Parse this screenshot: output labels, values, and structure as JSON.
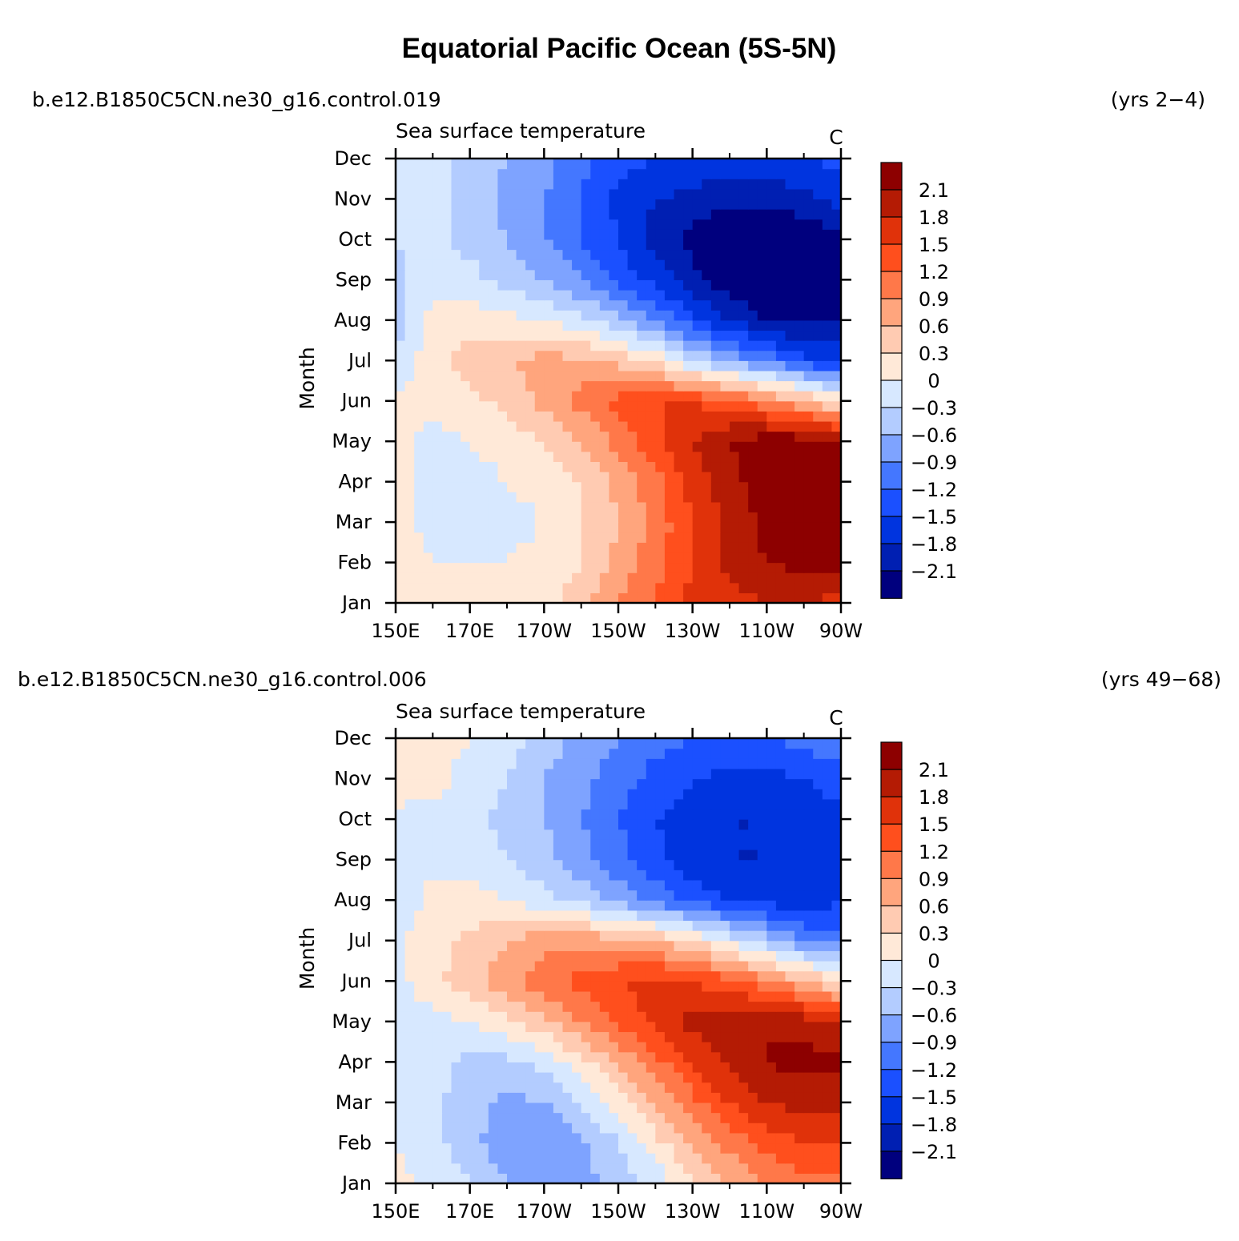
{
  "title": "Equatorial Pacific Ocean (5S-5N)",
  "colors": {
    "levels": [
      "#00007e",
      "#001fb2",
      "#0034df",
      "#1b50ff",
      "#4477ff",
      "#7ea3ff",
      "#b3ccff",
      "#d7e8ff",
      "#ffe9d8",
      "#ffcbb2",
      "#ffa57d",
      "#ff7849",
      "#ff4f1d",
      "#e0320a",
      "#b41b04",
      "#8d0000"
    ]
  },
  "chart_data": [
    {
      "type": "heatmap",
      "case_label": "b.e12.B1850C5CN.ne30_g16.control.019",
      "years_label": "(yrs 2−4)",
      "subtitle": "Sea surface temperature",
      "units": "C",
      "ylabel": "Month",
      "x_ticks": [
        "150E",
        "170E",
        "170W",
        "150W",
        "130W",
        "110W",
        "90W"
      ],
      "x_range_deg_east": [
        150,
        270
      ],
      "y_ticks": [
        "Jan",
        "Feb",
        "Mar",
        "Apr",
        "May",
        "Jun",
        "Jul",
        "Aug",
        "Sep",
        "Oct",
        "Nov",
        "Dec"
      ],
      "colorbar_labels": [
        "2.1",
        "1.8",
        "1.5",
        "1.2",
        "0.9",
        "0.6",
        "0.3",
        "0",
        "−0.3",
        "−0.6",
        "−0.9",
        "−1.2",
        "−1.5",
        "−1.8",
        "−2.1"
      ],
      "contour_levels": [
        -2.1,
        -1.8,
        -1.5,
        -1.2,
        -0.9,
        -0.6,
        -0.3,
        0,
        0.3,
        0.6,
        0.9,
        1.2,
        1.5,
        1.8,
        2.1
      ],
      "field": {
        "lon": [
          150,
          160,
          170,
          180,
          190,
          200,
          210,
          220,
          230,
          240,
          250,
          260,
          270
        ],
        "months": [
          "Jan",
          "Feb",
          "Mar",
          "Apr",
          "May",
          "Jun",
          "Jul",
          "Aug",
          "Sep",
          "Oct",
          "Nov",
          "Dec"
        ],
        "values": [
          [
            0.2,
            0.1,
            0.1,
            0.1,
            0.2,
            0.5,
            0.9,
            1.2,
            1.6,
            1.7,
            1.8,
            1.8,
            1.7
          ],
          [
            0.2,
            0.0,
            0.0,
            0.0,
            0.1,
            0.3,
            0.7,
            1.1,
            1.5,
            1.9,
            2.1,
            2.2,
            2.2
          ],
          [
            0.1,
            -0.1,
            -0.1,
            -0.1,
            0.0,
            0.3,
            0.6,
            1.0,
            1.5,
            1.9,
            2.2,
            2.4,
            2.4
          ],
          [
            0.1,
            -0.1,
            -0.1,
            0.0,
            0.1,
            0.3,
            0.7,
            1.1,
            1.6,
            2.0,
            2.3,
            2.4,
            2.4
          ],
          [
            0.1,
            -0.1,
            0.0,
            0.1,
            0.3,
            0.6,
            1.0,
            1.4,
            1.8,
            2.1,
            2.3,
            2.3,
            2.2
          ],
          [
            0.1,
            0.1,
            0.2,
            0.4,
            0.7,
            1.0,
            1.3,
            1.5,
            1.5,
            1.3,
            1.0,
            0.6,
            0.2
          ],
          [
            -0.3,
            0.2,
            0.4,
            0.6,
            0.7,
            0.7,
            0.5,
            0.2,
            -0.3,
            -0.7,
            -1.0,
            -1.4,
            -1.6
          ],
          [
            -0.4,
            0.1,
            0.2,
            0.1,
            0.0,
            -0.2,
            -0.5,
            -0.9,
            -1.4,
            -1.8,
            -2.1,
            -2.2,
            -2.1
          ],
          [
            -0.4,
            -0.1,
            -0.2,
            -0.4,
            -0.6,
            -0.9,
            -1.3,
            -1.6,
            -2.0,
            -2.3,
            -2.5,
            -2.5,
            -2.3
          ],
          [
            -0.3,
            -0.2,
            -0.4,
            -0.6,
            -0.9,
            -1.2,
            -1.5,
            -1.9,
            -2.2,
            -2.5,
            -2.5,
            -2.4,
            -2.2
          ],
          [
            -0.2,
            -0.2,
            -0.4,
            -0.7,
            -0.9,
            -1.2,
            -1.6,
            -1.8,
            -1.9,
            -2.0,
            -2.0,
            -1.9,
            -1.7
          ],
          [
            -0.1,
            -0.2,
            -0.4,
            -0.6,
            -0.8,
            -1.1,
            -1.4,
            -1.5,
            -1.6,
            -1.6,
            -1.6,
            -1.5,
            -1.4
          ]
        ]
      }
    },
    {
      "type": "heatmap",
      "case_label": "b.e12.B1850C5CN.ne30_g16.control.006",
      "years_label": "(yrs 49−68)",
      "subtitle": "Sea surface temperature",
      "units": "C",
      "ylabel": "Month",
      "x_ticks": [
        "150E",
        "170E",
        "170W",
        "150W",
        "130W",
        "110W",
        "90W"
      ],
      "x_range_deg_east": [
        150,
        270
      ],
      "y_ticks": [
        "Jan",
        "Feb",
        "Mar",
        "Apr",
        "May",
        "Jun",
        "Jul",
        "Aug",
        "Sep",
        "Oct",
        "Nov",
        "Dec"
      ],
      "colorbar_labels": [
        "2.1",
        "1.8",
        "1.5",
        "1.2",
        "0.9",
        "0.6",
        "0.3",
        "0",
        "−0.3",
        "−0.6",
        "−0.9",
        "−1.2",
        "−1.5",
        "−1.8",
        "−2.1"
      ],
      "contour_levels": [
        -2.1,
        -1.8,
        -1.5,
        -1.2,
        -0.9,
        -0.6,
        -0.3,
        0,
        0.3,
        0.6,
        0.9,
        1.2,
        1.5,
        1.8,
        2.1
      ],
      "field": {
        "lon": [
          150,
          160,
          170,
          180,
          190,
          200,
          210,
          220,
          230,
          240,
          250,
          260,
          270
        ],
        "months": [
          "Jan",
          "Feb",
          "Mar",
          "Apr",
          "May",
          "Jun",
          "Jul",
          "Aug",
          "Sep",
          "Oct",
          "Nov",
          "Dec"
        ],
        "values": [
          [
            0.1,
            -0.1,
            -0.3,
            -0.6,
            -0.7,
            -0.7,
            -0.5,
            -0.2,
            0.2,
            0.6,
            0.9,
            1.1,
            1.1
          ],
          [
            0.0,
            -0.2,
            -0.5,
            -0.8,
            -0.9,
            -0.7,
            -0.3,
            0.2,
            0.6,
            1.0,
            1.3,
            1.5,
            1.5
          ],
          [
            -0.1,
            -0.2,
            -0.5,
            -0.7,
            -0.6,
            -0.3,
            0.1,
            0.6,
            1.1,
            1.5,
            1.8,
            1.9,
            1.9
          ],
          [
            -0.1,
            -0.2,
            -0.4,
            -0.4,
            -0.2,
            0.2,
            0.6,
            1.1,
            1.5,
            1.9,
            2.1,
            2.2,
            2.2
          ],
          [
            -0.1,
            -0.1,
            0.0,
            0.2,
            0.5,
            0.9,
            1.3,
            1.6,
            1.9,
            2.0,
            2.1,
            2.0,
            1.8
          ],
          [
            -0.1,
            0.2,
            0.5,
            0.8,
            1.1,
            1.3,
            1.5,
            1.6,
            1.5,
            1.3,
            1.0,
            0.6,
            0.3
          ],
          [
            -0.1,
            0.2,
            0.4,
            0.6,
            0.8,
            0.8,
            0.7,
            0.6,
            0.3,
            -0.1,
            -0.5,
            -0.9,
            -1.1
          ],
          [
            -0.2,
            0.1,
            0.1,
            0.0,
            -0.2,
            -0.4,
            -0.7,
            -1.0,
            -1.3,
            -1.5,
            -1.6,
            -1.7,
            -1.5
          ],
          [
            -0.1,
            -0.1,
            -0.1,
            -0.3,
            -0.5,
            -0.8,
            -1.1,
            -1.4,
            -1.7,
            -1.8,
            -1.8,
            -1.7,
            -1.6
          ],
          [
            -0.1,
            -0.1,
            -0.2,
            -0.4,
            -0.6,
            -0.9,
            -1.2,
            -1.5,
            -1.7,
            -1.8,
            -1.8,
            -1.8,
            -1.6
          ],
          [
            0.2,
            0.1,
            -0.1,
            -0.3,
            -0.6,
            -0.8,
            -1.1,
            -1.3,
            -1.5,
            -1.6,
            -1.6,
            -1.5,
            -1.3
          ],
          [
            0.1,
            0.1,
            0.0,
            -0.2,
            -0.4,
            -0.7,
            -0.9,
            -1.1,
            -1.2,
            -1.2,
            -1.2,
            -1.1,
            -1.0
          ]
        ]
      }
    }
  ]
}
